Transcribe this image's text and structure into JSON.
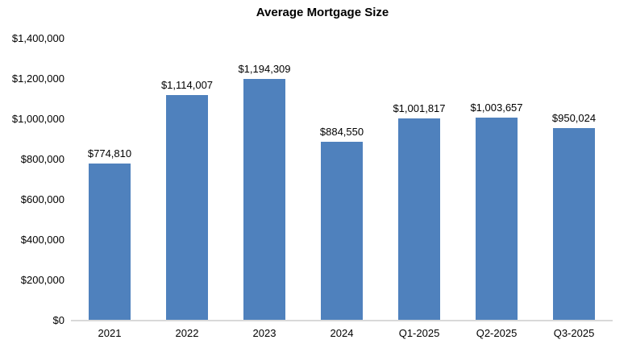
{
  "chart_data": {
    "type": "bar",
    "title": "Average Mortgage Size",
    "categories": [
      "2021",
      "2022",
      "2023",
      "2024",
      "Q1-2025",
      "Q2-2025",
      "Q3-2025"
    ],
    "values": [
      774810,
      1114007,
      1194309,
      884550,
      1001817,
      1003657,
      950024
    ],
    "data_labels": [
      "$774,810",
      "$1,114,007",
      "$1,194,309",
      "$884,550",
      "$1,001,817",
      "$1,003,657",
      "$950,024"
    ],
    "xlabel": "",
    "ylabel": "",
    "ylim": [
      0,
      1400000
    ],
    "y_tick_step": 200000,
    "y_tick_labels": [
      "$0",
      "$200,000",
      "$400,000",
      "$600,000",
      "$800,000",
      "$1,000,000",
      "$1,200,000",
      "$1,400,000"
    ],
    "grid": false,
    "legend_position": "none",
    "bar_color": "#4F81BD",
    "axis_line_color": "#D9D9D9",
    "text_color": "#000000",
    "background_color": "#FFFFFF"
  }
}
